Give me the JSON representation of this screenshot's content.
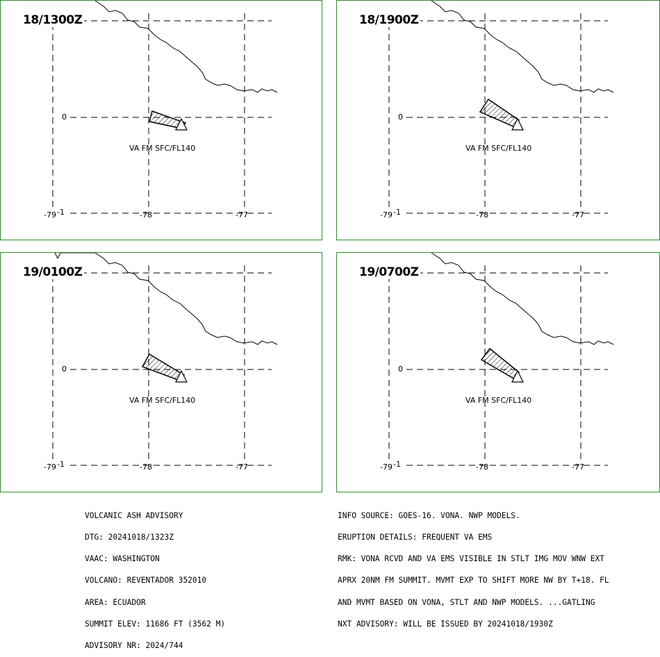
{
  "panels": [
    {
      "time": "18/1300Z",
      "label": "VA FM SFC/FL140"
    },
    {
      "time": "18/1900Z",
      "label": "VA FM SFC/FL140"
    },
    {
      "time": "19/0100Z",
      "label": "VA FM SFC/FL140"
    },
    {
      "time": "19/0700Z",
      "label": "VA FM SFC/FL140"
    }
  ],
  "axes": {
    "lat_label": "0",
    "lon_labels": [
      "-79",
      "-78",
      "-77"
    ],
    "corner_label": "-1"
  },
  "advisory_left": [
    "VOLCANIC ASH ADVISORY",
    "DTG: 20241018/1323Z",
    "VAAC: WASHINGTON",
    "VOLCANO: REVENTADOR 352010",
    "AREA: ECUADOR",
    "SUMMIT ELEV: 11686 FT (3562 M)",
    "ADVISORY NR: 2024/744"
  ],
  "advisory_right": [
    "INFO SOURCE: GOES-16. VONA. NWP MODELS.",
    "ERUPTION DETAILS: FREQUENT VA EMS",
    "RMK: VONA RCVD AND VA EMS VISIBLE IN STLT IMG MOV WNW EXT",
    "APRX 20NM FM SUMMIT. MVMT EXP TO SHIFT MORE NW BY T+18. FL",
    "AND MVMT BASED ON VONA, STLT AND NWP MODELS. ...GATLING",
    "NXT ADVISORY: WILL BE ISSUED BY 20241018/1930Z"
  ],
  "colors": {
    "panel_border": "#2e8b2e",
    "lines": "#000000"
  }
}
